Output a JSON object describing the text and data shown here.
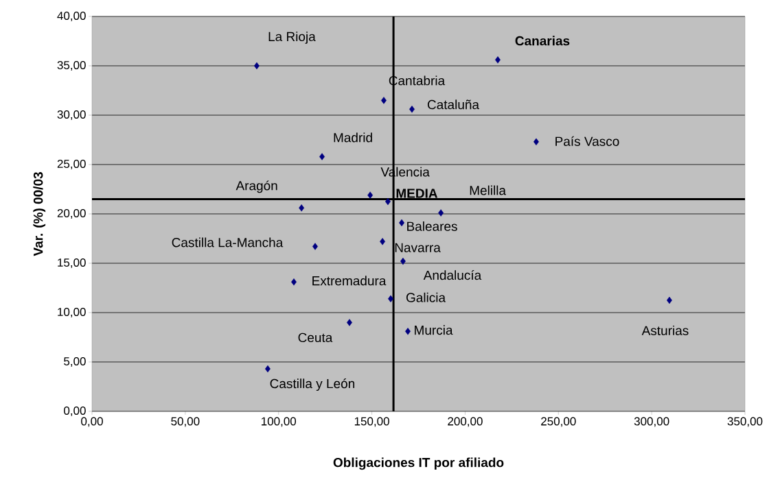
{
  "chart_data": {
    "type": "scatter",
    "xlabel": "Obligaciones IT por afiliado",
    "ylabel": "Var. (%) 00/03",
    "x": [
      88.3,
      217.5,
      156.4,
      171.5,
      123.3,
      238.1,
      149.1,
      158.6,
      187.0,
      112.3,
      166.0,
      119.6,
      155.7,
      166.7,
      108.2,
      160.1,
      309.5,
      138.0,
      169.3,
      94.2
    ],
    "values": [
      35.0,
      35.6,
      31.5,
      30.6,
      25.8,
      27.3,
      21.9,
      21.25,
      20.1,
      20.6,
      19.1,
      16.7,
      17.2,
      15.2,
      13.1,
      11.4,
      11.25,
      9.0,
      8.1,
      4.3
    ],
    "color": "#000080",
    "marker": "diamond",
    "grid": "y",
    "xlim": [
      0,
      350
    ],
    "ylim": [
      0,
      40
    ],
    "xticks": [
      {
        "value": 0,
        "label": "0,00"
      },
      {
        "value": 50,
        "label": "50,00"
      },
      {
        "value": 100,
        "label": "100,00"
      },
      {
        "value": 150,
        "label": "150,00"
      },
      {
        "value": 200,
        "label": "200,00"
      },
      {
        "value": 250,
        "label": "250,00"
      },
      {
        "value": 300,
        "label": "300,00"
      },
      {
        "value": 350,
        "label": "350,00"
      }
    ],
    "yticks": [
      {
        "value": 0,
        "label": "0,00"
      },
      {
        "value": 5,
        "label": "5,00"
      },
      {
        "value": 10,
        "label": "10,00"
      },
      {
        "value": 15,
        "label": "15,00"
      },
      {
        "value": 20,
        "label": "20,00"
      },
      {
        "value": 25,
        "label": "25,00"
      },
      {
        "value": 30,
        "label": "30,00"
      },
      {
        "value": 35,
        "label": "35,00"
      },
      {
        "value": 40,
        "label": "40,00"
      }
    ],
    "ref_lines": [
      {
        "axis": "x",
        "value": 161.6,
        "color": "#000000"
      },
      {
        "axis": "y",
        "value": 21.5,
        "color": "#000000"
      }
    ],
    "annotations": [
      {
        "text": "La Rioja",
        "x": 88.3,
        "y": 35.0
      },
      {
        "text": "**Canarias**",
        "x": 217.5,
        "y": 35.6
      },
      {
        "text": "Cantabria",
        "x": 156.4,
        "y": 31.5
      },
      {
        "text": "Cataluña",
        "x": 171.5,
        "y": 30.6
      },
      {
        "text": "Madrid",
        "x": 123.3,
        "y": 25.8
      },
      {
        "text": "País Vasco",
        "x": 238.1,
        "y": 27.3
      },
      {
        "text": "Valencia",
        "x": 149.1,
        "y": 21.9
      },
      {
        "text": "**MEDIA**",
        "x": 158.6,
        "y": 21.25
      },
      {
        "text": "Melilla",
        "x": 187.0,
        "y": 20.1
      },
      {
        "text": "Aragón",
        "x": 112.3,
        "y": 20.6
      },
      {
        "text": "Baleares",
        "x": 166.0,
        "y": 19.1
      },
      {
        "text": "Castilla La-Mancha",
        "x": 119.6,
        "y": 16.7
      },
      {
        "text": "Navarra",
        "x": 155.7,
        "y": 17.2
      },
      {
        "text": "Andalucía",
        "x": 166.7,
        "y": 15.2
      },
      {
        "text": "Extremadura",
        "x": 108.2,
        "y": 13.1
      },
      {
        "text": "Galicia",
        "x": 160.1,
        "y": 11.4
      },
      {
        "text": "Asturias",
        "x": 309.5,
        "y": 11.25
      },
      {
        "text": "Ceuta",
        "x": 138.0,
        "y": 9.0
      },
      {
        "text": "Murcia",
        "x": 169.3,
        "y": 8.1
      },
      {
        "text": "Castilla y León",
        "x": 94.2,
        "y": 4.3
      }
    ]
  }
}
